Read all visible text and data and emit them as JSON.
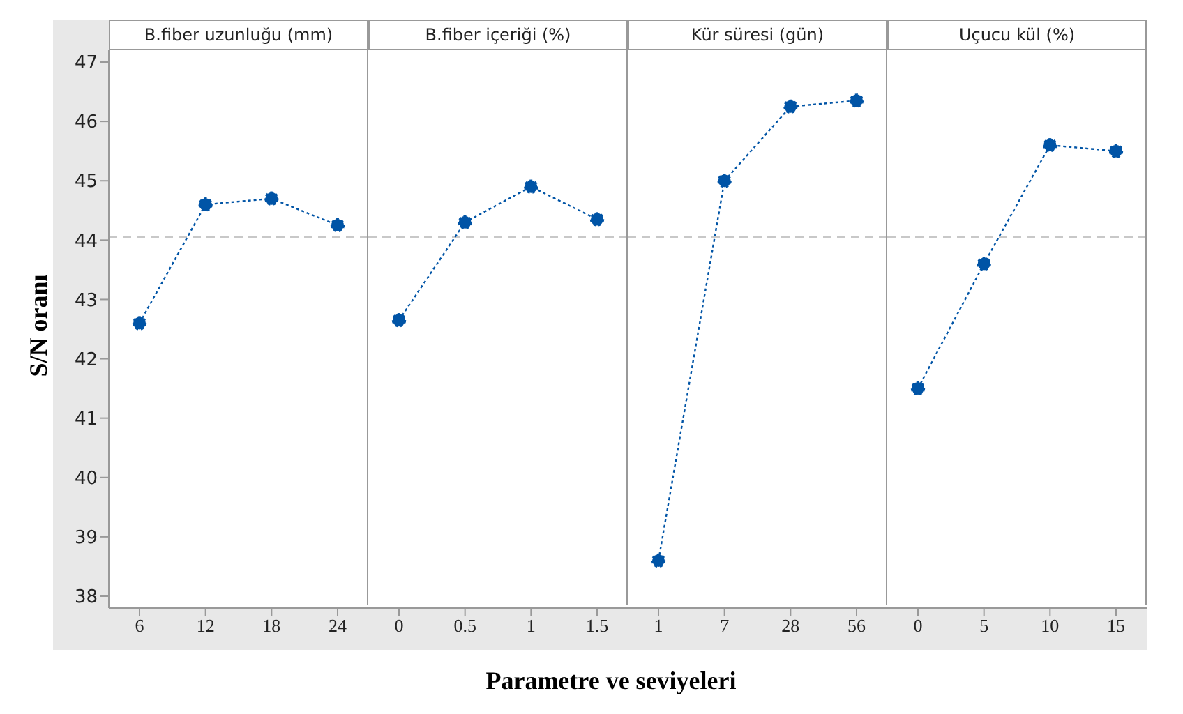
{
  "chart_data": [
    {
      "type": "line",
      "title": "B.fiber uzunluğu (mm)",
      "xlabel": "Parametre ve seviyeleri",
      "ylabel": "S/N oranı",
      "categories": [
        "6",
        "12",
        "18",
        "24"
      ],
      "series": [
        {
          "color": "#0054a6",
          "values": [
            42.6,
            44.6,
            44.7,
            44.25
          ]
        }
      ],
      "ylim": [
        37.8,
        47.2
      ],
      "yticks": [
        38,
        39,
        40,
        41,
        42,
        43,
        44,
        45,
        46,
        47
      ],
      "marker": "circle",
      "line_style": "dotted",
      "ref_lines": [
        {
          "axis": "y",
          "value": 44.05,
          "color": "#c8c8c8",
          "line_style": "dashed"
        }
      ]
    },
    {
      "type": "line",
      "title": "B.fiber içeriği (%)",
      "categories": [
        "0",
        "0.5",
        "1",
        "1.5"
      ],
      "series": [
        {
          "color": "#0054a6",
          "values": [
            42.65,
            44.3,
            44.9,
            44.35
          ]
        }
      ],
      "ylim": [
        37.8,
        47.2
      ],
      "tick_labels": "x",
      "marker": "circle",
      "line_style": "dotted",
      "ref_lines": [
        {
          "axis": "y",
          "value": 44.05,
          "color": "#c8c8c8",
          "line_style": "dashed"
        }
      ]
    },
    {
      "type": "line",
      "title": "Kür süresi (gün)",
      "categories": [
        "1",
        "7",
        "28",
        "56"
      ],
      "series": [
        {
          "color": "#0054a6",
          "values": [
            38.6,
            45.0,
            46.25,
            46.35
          ]
        }
      ],
      "ylim": [
        37.8,
        47.2
      ],
      "tick_labels": "x",
      "marker": "circle",
      "line_style": "dotted",
      "ref_lines": [
        {
          "axis": "y",
          "value": 44.05,
          "color": "#c8c8c8",
          "line_style": "dashed"
        }
      ]
    },
    {
      "type": "line",
      "title": "Uçucu kül (%)",
      "categories": [
        "0",
        "5",
        "10",
        "15"
      ],
      "series": [
        {
          "color": "#0054a6",
          "values": [
            41.5,
            43.6,
            45.6,
            45.5
          ]
        }
      ],
      "ylim": [
        37.8,
        47.2
      ],
      "tick_labels": "x",
      "marker": "circle",
      "line_style": "dotted",
      "ref_lines": [
        {
          "axis": "y",
          "value": 44.05,
          "color": "#c8c8c8",
          "line_style": "dashed"
        }
      ]
    }
  ]
}
